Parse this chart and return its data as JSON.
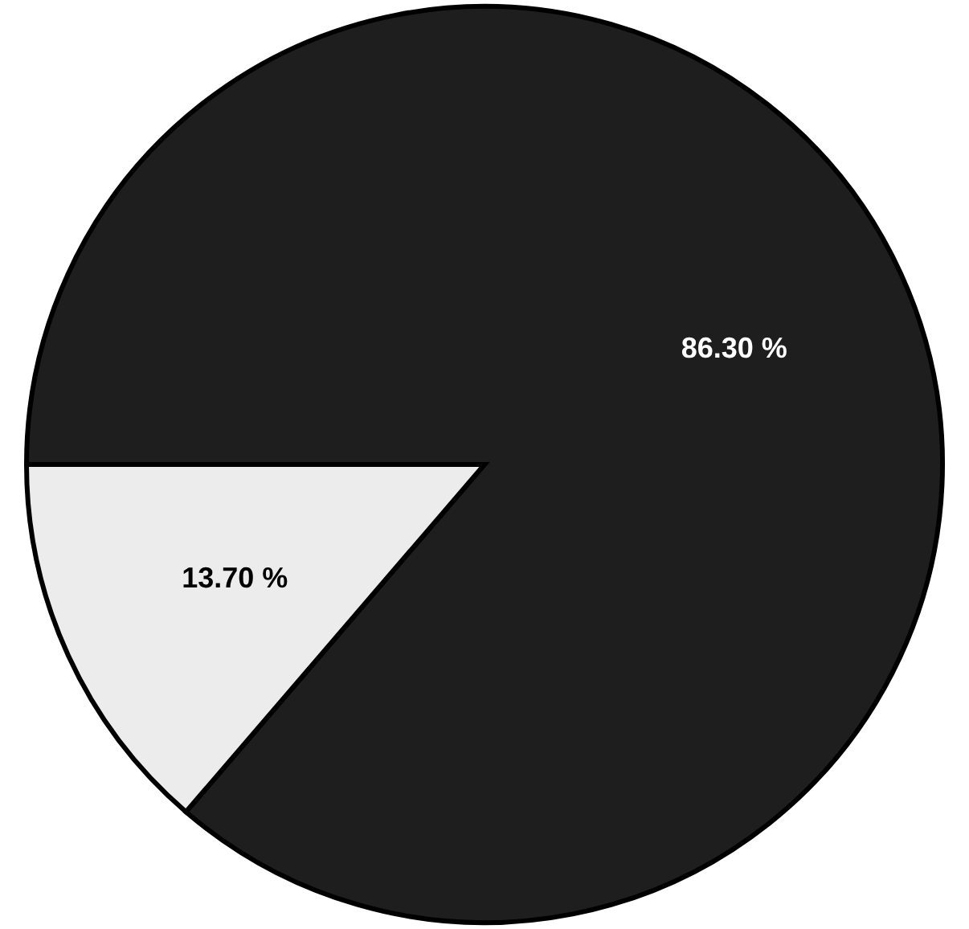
{
  "chart_data": {
    "type": "pie",
    "categories": [
      null,
      null
    ],
    "values": [
      86.3,
      13.7
    ],
    "colors": [
      "#1e1e1e",
      "#ececec"
    ],
    "value_labels": [
      "86.30 %",
      "13.70 %"
    ]
  }
}
